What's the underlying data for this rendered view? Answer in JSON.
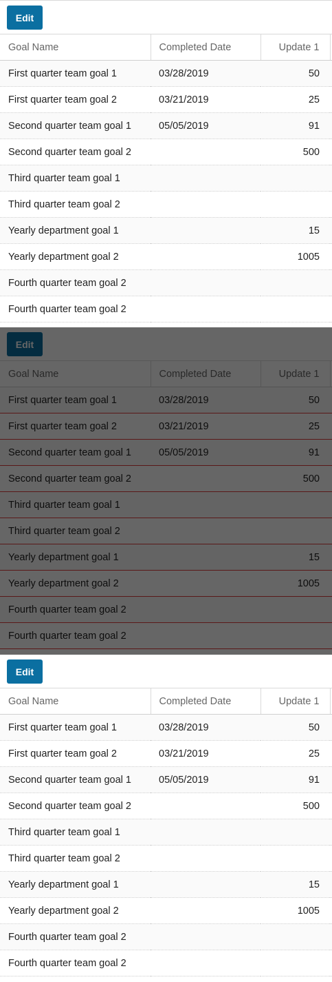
{
  "toolbar": {
    "edit_label": "Edit"
  },
  "columns": {
    "goal_name": "Goal Name",
    "completed_date": "Completed Date",
    "update1": "Update 1"
  },
  "rows": [
    {
      "name": "First quarter team goal 1",
      "date": "03/28/2019",
      "update": "50"
    },
    {
      "name": "First quarter team goal 2",
      "date": "03/21/2019",
      "update": "25"
    },
    {
      "name": "Second quarter team goal 1",
      "date": "05/05/2019",
      "update": "91"
    },
    {
      "name": "Second quarter team goal 2",
      "date": "",
      "update": "500"
    },
    {
      "name": "Third quarter team goal 1",
      "date": "",
      "update": ""
    },
    {
      "name": "Third quarter team goal 2",
      "date": "",
      "update": ""
    },
    {
      "name": "Yearly department goal 1",
      "date": "",
      "update": "15"
    },
    {
      "name": "Yearly department goal 2",
      "date": "",
      "update": "1005"
    },
    {
      "name": "Fourth quarter team goal 2",
      "date": "",
      "update": ""
    },
    {
      "name": "Fourth quarter team goal 2",
      "date": "",
      "update": ""
    }
  ],
  "colors": {
    "button": "#0b6fa1",
    "row_highlight": "#e03c3c",
    "overlay": "rgba(0,0,0,0.6)"
  }
}
